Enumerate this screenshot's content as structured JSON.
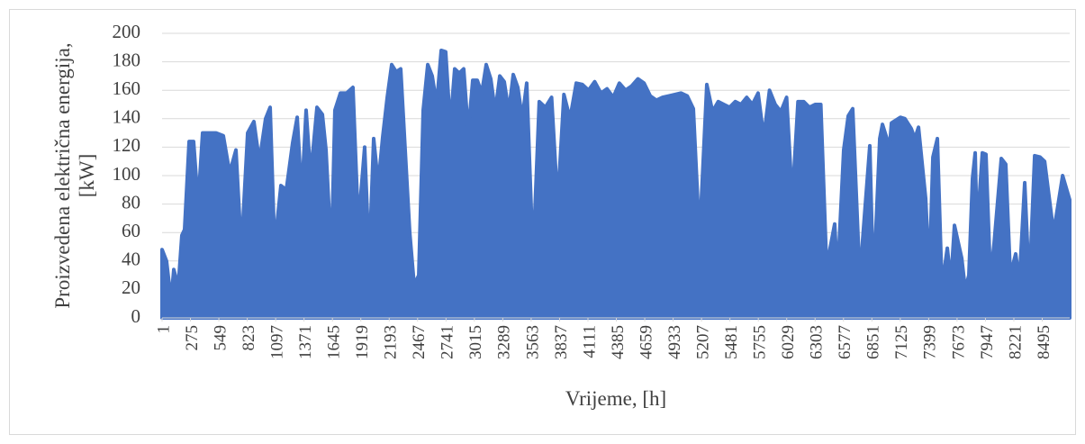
{
  "chart_data": {
    "type": "area",
    "xlabel": "Vrijeme, [h]",
    "ylabel": [
      "Proizvedena električna energija,",
      "[kW]"
    ],
    "color": "#4472c4",
    "xlim": [
      1,
      8760
    ],
    "ylim": [
      0,
      200
    ],
    "yticks": [
      0,
      20,
      40,
      60,
      80,
      100,
      120,
      140,
      160,
      180,
      200
    ],
    "xticks": [
      1,
      275,
      549,
      823,
      1097,
      1371,
      1645,
      1919,
      2193,
      2467,
      2741,
      3015,
      3289,
      3563,
      3837,
      4111,
      4385,
      4659,
      4933,
      5207,
      5481,
      5755,
      6029,
      6303,
      6577,
      6851,
      7125,
      7399,
      7673,
      7947,
      8221,
      8495
    ],
    "grid": true,
    "x": [
      1,
      44,
      88,
      114,
      157,
      192,
      218,
      262,
      305,
      349,
      392,
      453,
      522,
      592,
      653,
      714,
      766,
      827,
      887,
      940,
      1000,
      1044,
      1087,
      1148,
      1200,
      1261,
      1305,
      1348,
      1391,
      1435,
      1496,
      1548,
      1583,
      1635,
      1669,
      1722,
      1782,
      1843,
      1895,
      1956,
      2000,
      2043,
      2087,
      2130,
      2174,
      2217,
      2260,
      2304,
      2347,
      2391,
      2434,
      2478,
      2521,
      2565,
      2608,
      2651,
      2695,
      2738,
      2782,
      2825,
      2869,
      2912,
      2956,
      2999,
      3043,
      3086,
      3129,
      3173,
      3216,
      3260,
      3303,
      3347,
      3390,
      3434,
      3477,
      3520,
      3581,
      3641,
      3700,
      3760,
      3819,
      3879,
      3938,
      3998,
      4057,
      4117,
      4176,
      4236,
      4295,
      4355,
      4414,
      4474,
      4533,
      4593,
      4652,
      4712,
      4771,
      4831,
      4890,
      4950,
      5009,
      5069,
      5128,
      5188,
      5258,
      5313,
      5368,
      5423,
      5478,
      5533,
      5588,
      5643,
      5698,
      5753,
      5808,
      5863,
      5918,
      5973,
      6028,
      6083,
      6138,
      6193,
      6248,
      6303,
      6358,
      6414,
      6492,
      6519,
      6579,
      6623,
      6666,
      6736,
      6762,
      6831,
      6866,
      6927,
      6953,
      7022,
      7040,
      7127,
      7170,
      7231,
      7266,
      7301,
      7370,
      7405,
      7440,
      7483,
      7527,
      7579,
      7613,
      7648,
      7718,
      7752,
      7787,
      7822,
      7848,
      7865,
      7917,
      7952,
      7995,
      8030,
      8100,
      8143,
      8187,
      8239,
      8274,
      8326,
      8370,
      8422,
      8474,
      8518,
      8605,
      8692,
      8760
    ],
    "values": [
      48,
      40,
      12,
      34,
      22,
      58,
      62,
      124,
      124,
      80,
      130,
      130,
      130,
      128,
      102,
      118,
      47,
      130,
      138,
      110,
      140,
      148,
      50,
      93,
      90,
      123,
      141,
      85,
      146,
      100,
      148,
      143,
      118,
      43,
      146,
      158,
      158,
      162,
      65,
      120,
      40,
      126,
      94,
      127,
      155,
      178,
      173,
      175,
      118,
      60,
      23,
      30,
      146,
      178,
      170,
      150,
      188,
      187,
      135,
      175,
      172,
      175,
      130,
      167,
      167,
      158,
      178,
      168,
      145,
      170,
      166,
      145,
      171,
      162,
      140,
      165,
      42,
      152,
      148,
      155,
      80,
      157,
      140,
      165,
      164,
      160,
      166,
      158,
      161,
      155,
      165,
      160,
      163,
      168,
      165,
      156,
      153,
      155,
      156,
      157,
      158,
      156,
      147,
      56,
      164,
      145,
      152,
      150,
      148,
      152,
      150,
      155,
      150,
      158,
      127,
      160,
      150,
      145,
      155,
      83,
      152,
      152,
      148,
      150,
      150,
      36,
      66,
      28,
      118,
      142,
      147,
      25,
      55,
      121,
      22,
      126,
      136,
      120,
      137,
      141,
      140,
      133,
      126,
      134,
      84,
      30,
      113,
      126,
      22,
      49,
      25,
      65,
      42,
      20,
      30,
      98,
      116,
      60,
      116,
      115,
      28,
      52,
      112,
      108,
      30,
      45,
      25,
      95,
      22,
      114,
      113,
      110,
      60,
      100,
      83
    ]
  }
}
